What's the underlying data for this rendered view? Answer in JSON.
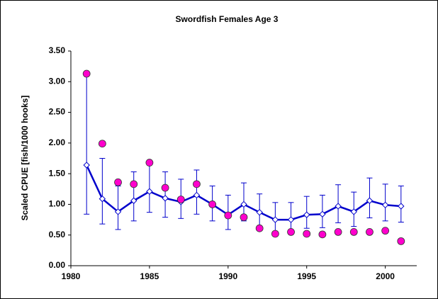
{
  "chart_data": {
    "type": "line",
    "title": "Swordfish Females Age  3",
    "y_label": "Scaled CPUE [fish/1000 hooks]",
    "x": [
      1981,
      1982,
      1983,
      1984,
      1985,
      1986,
      1987,
      1988,
      1989,
      1990,
      1991,
      1992,
      1993,
      1994,
      1995,
      1996,
      1997,
      1998,
      1999,
      2000,
      2001
    ],
    "series": [
      {
        "color": "#0000cc",
        "marker": "diamond",
        "line": true,
        "values": [
          1.64,
          1.09,
          0.88,
          1.06,
          1.21,
          1.1,
          1.04,
          1.15,
          1.0,
          0.83,
          1.0,
          0.87,
          0.75,
          0.75,
          0.83,
          0.84,
          0.97,
          0.88,
          1.06,
          0.99,
          0.97
        ],
        "upper": [
          3.12,
          1.75,
          1.3,
          1.53,
          1.66,
          1.53,
          1.41,
          1.56,
          1.3,
          1.15,
          1.35,
          1.17,
          1.03,
          1.03,
          1.13,
          1.15,
          1.32,
          1.2,
          1.43,
          1.33,
          1.3
        ],
        "lower": [
          0.84,
          0.68,
          0.59,
          0.73,
          0.87,
          0.79,
          0.77,
          0.84,
          0.73,
          0.59,
          0.73,
          0.63,
          0.55,
          0.55,
          0.61,
          0.62,
          0.7,
          0.64,
          0.78,
          0.73,
          0.71
        ]
      },
      {
        "color": "#ff00cc",
        "marker": "circle",
        "line": false,
        "values": [
          3.13,
          1.99,
          1.36,
          1.33,
          1.68,
          1.27,
          1.08,
          1.33,
          1.0,
          0.82,
          0.79,
          0.61,
          0.52,
          0.55,
          0.52,
          0.51,
          0.55,
          0.55,
          0.55,
          0.57,
          0.4
        ]
      }
    ],
    "xlim": [
      1980,
      2002
    ],
    "xticks": [
      1980,
      1985,
      1990,
      1995,
      2000
    ],
    "ylim": [
      0,
      3.5
    ],
    "yticks": [
      {
        "value": 0,
        "label": "0.00"
      },
      {
        "value": 0.5,
        "label": "0.50"
      },
      {
        "value": 1,
        "label": "1.00"
      },
      {
        "value": 1.5,
        "label": "1.50"
      },
      {
        "value": 2,
        "label": "2.00"
      },
      {
        "value": 2.5,
        "label": "2.50"
      },
      {
        "value": 3,
        "label": "3.00"
      },
      {
        "value": 3.5,
        "label": "3.50"
      }
    ],
    "grid": false
  }
}
